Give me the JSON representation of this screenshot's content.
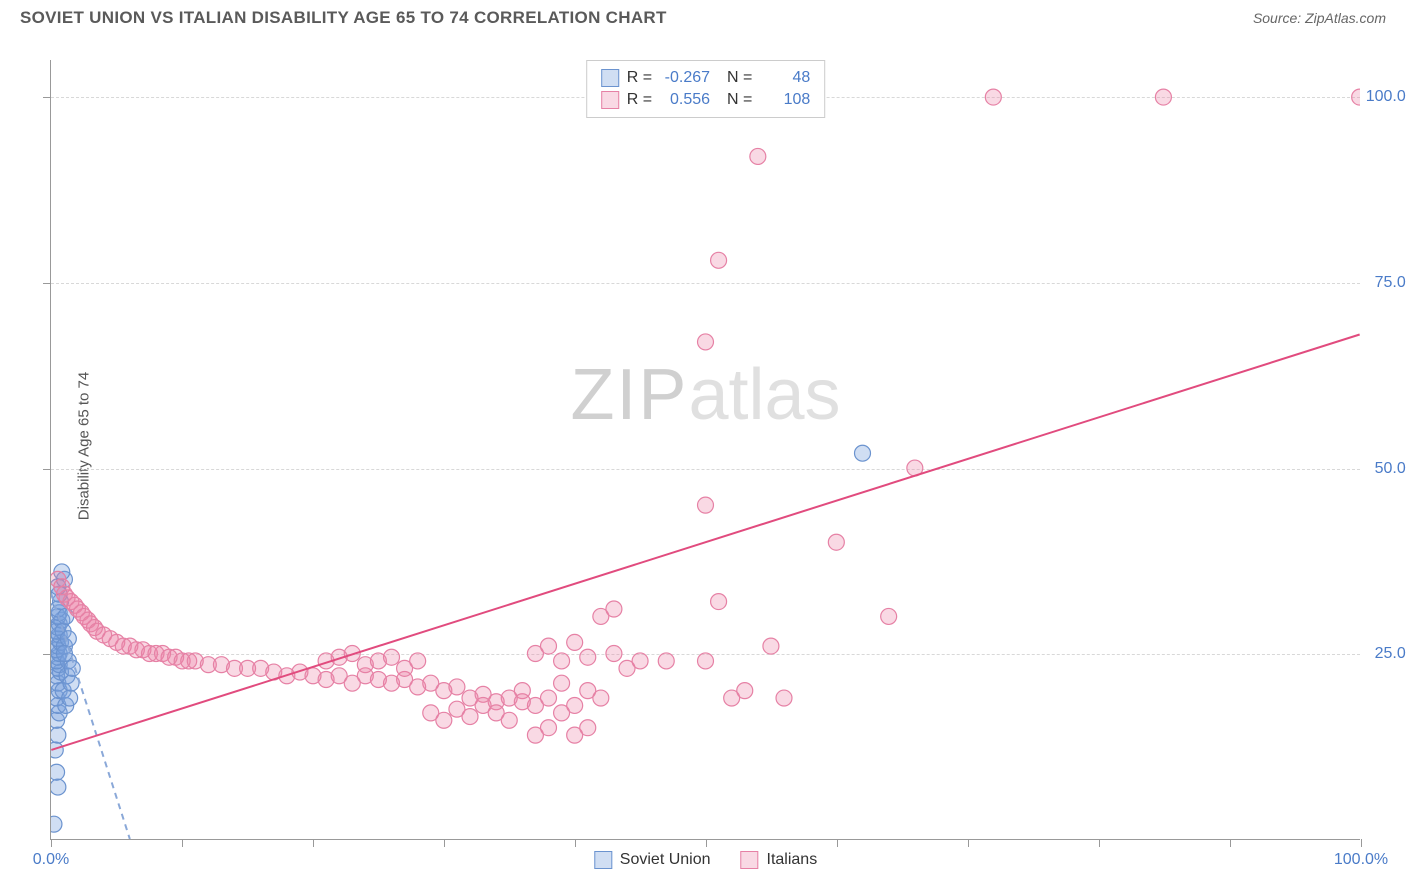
{
  "title": "SOVIET UNION VS ITALIAN DISABILITY AGE 65 TO 74 CORRELATION CHART",
  "source": "Source: ZipAtlas.com",
  "y_axis_title": "Disability Age 65 to 74",
  "watermark": {
    "zip": "ZIP",
    "atlas": "atlas"
  },
  "chart": {
    "type": "scatter",
    "xlim": [
      0,
      100
    ],
    "ylim": [
      0,
      105
    ],
    "x_ticks": [
      0,
      10,
      20,
      30,
      40,
      50,
      60,
      70,
      80,
      90,
      100
    ],
    "y_ticks": [
      25,
      50,
      75,
      100
    ],
    "x_labels": [
      {
        "v": 0,
        "t": "0.0%"
      },
      {
        "v": 100,
        "t": "100.0%"
      }
    ],
    "y_labels": [
      {
        "v": 25,
        "t": "25.0%"
      },
      {
        "v": 50,
        "t": "50.0%"
      },
      {
        "v": 75,
        "t": "75.0%"
      },
      {
        "v": 100,
        "t": "100.0%"
      }
    ],
    "grid_color": "#d8d8d8",
    "background_color": "#ffffff",
    "marker_radius": 8,
    "marker_stroke_width": 1.2,
    "line_width": 2,
    "series": [
      {
        "name": "Soviet Union",
        "fill": "rgba(120,160,220,0.35)",
        "stroke": "#6b93cf",
        "line_color": "#8aa8d8",
        "r_value": "-0.267",
        "n_value": "48",
        "dashed": true,
        "trend": {
          "x1": 0,
          "y1": 33,
          "x2": 6,
          "y2": 0
        },
        "points": [
          [
            0.2,
            2
          ],
          [
            0.5,
            7
          ],
          [
            0.4,
            9
          ],
          [
            0.3,
            12
          ],
          [
            0.5,
            14
          ],
          [
            0.4,
            16
          ],
          [
            0.6,
            17
          ],
          [
            0.5,
            18
          ],
          [
            0.4,
            19
          ],
          [
            0.6,
            20
          ],
          [
            0.5,
            21
          ],
          [
            0.4,
            22
          ],
          [
            0.7,
            22.5
          ],
          [
            0.5,
            23
          ],
          [
            0.6,
            23.5
          ],
          [
            0.4,
            24
          ],
          [
            0.5,
            24.5
          ],
          [
            0.6,
            25
          ],
          [
            0.4,
            25.5
          ],
          [
            0.5,
            26
          ],
          [
            0.7,
            26.5
          ],
          [
            0.5,
            27
          ],
          [
            0.6,
            27.5
          ],
          [
            0.4,
            28
          ],
          [
            0.5,
            28.5
          ],
          [
            0.6,
            29
          ],
          [
            0.8,
            29.5
          ],
          [
            0.5,
            30
          ],
          [
            0.6,
            30.5
          ],
          [
            0.5,
            31
          ],
          [
            0.7,
            32
          ],
          [
            0.6,
            33
          ],
          [
            0.5,
            34
          ],
          [
            1.0,
            35
          ],
          [
            0.8,
            36
          ],
          [
            0.9,
            20
          ],
          [
            1.1,
            18
          ],
          [
            1.2,
            22
          ],
          [
            1.3,
            24
          ],
          [
            1.0,
            26
          ],
          [
            1.4,
            19
          ],
          [
            1.5,
            21
          ],
          [
            0.9,
            28
          ],
          [
            1.1,
            30
          ],
          [
            1.3,
            27
          ],
          [
            1.6,
            23
          ],
          [
            1.0,
            25
          ],
          [
            62,
            52
          ]
        ]
      },
      {
        "name": "Italians",
        "fill": "rgba(235,130,165,0.30)",
        "stroke": "#e681a5",
        "line_color": "#e14b7e",
        "r_value": "0.556",
        "n_value": "108",
        "dashed": false,
        "trend": {
          "x1": 0,
          "y1": 12,
          "x2": 100,
          "y2": 68
        },
        "points": [
          [
            0.5,
            35
          ],
          [
            0.8,
            34
          ],
          [
            1,
            33
          ],
          [
            1.2,
            32.5
          ],
          [
            1.5,
            32
          ],
          [
            1.8,
            31.5
          ],
          [
            2,
            31
          ],
          [
            2.3,
            30.5
          ],
          [
            2.5,
            30
          ],
          [
            2.8,
            29.5
          ],
          [
            3,
            29
          ],
          [
            3.3,
            28.5
          ],
          [
            3.5,
            28
          ],
          [
            4,
            27.5
          ],
          [
            4.5,
            27
          ],
          [
            5,
            26.5
          ],
          [
            5.5,
            26
          ],
          [
            6,
            26
          ],
          [
            6.5,
            25.5
          ],
          [
            7,
            25.5
          ],
          [
            7.5,
            25
          ],
          [
            8,
            25
          ],
          [
            8.5,
            25
          ],
          [
            9,
            24.5
          ],
          [
            9.5,
            24.5
          ],
          [
            10,
            24
          ],
          [
            10.5,
            24
          ],
          [
            11,
            24
          ],
          [
            12,
            23.5
          ],
          [
            13,
            23.5
          ],
          [
            14,
            23
          ],
          [
            15,
            23
          ],
          [
            16,
            23
          ],
          [
            17,
            22.5
          ],
          [
            18,
            22
          ],
          [
            19,
            22.5
          ],
          [
            20,
            22
          ],
          [
            21,
            21.5
          ],
          [
            22,
            22
          ],
          [
            23,
            21
          ],
          [
            24,
            22
          ],
          [
            25,
            21.5
          ],
          [
            26,
            21
          ],
          [
            27,
            21.5
          ],
          [
            28,
            20.5
          ],
          [
            29,
            21
          ],
          [
            30,
            20
          ],
          [
            31,
            20.5
          ],
          [
            21,
            24
          ],
          [
            22,
            24.5
          ],
          [
            23,
            25
          ],
          [
            24,
            23.5
          ],
          [
            25,
            24
          ],
          [
            26,
            24.5
          ],
          [
            27,
            23
          ],
          [
            28,
            24
          ],
          [
            32,
            19
          ],
          [
            33,
            19.5
          ],
          [
            34,
            18.5
          ],
          [
            35,
            19
          ],
          [
            36,
            20
          ],
          [
            37,
            18
          ],
          [
            38,
            19
          ],
          [
            39,
            21
          ],
          [
            29,
            17
          ],
          [
            30,
            16
          ],
          [
            31,
            17.5
          ],
          [
            32,
            16.5
          ],
          [
            33,
            18
          ],
          [
            34,
            17
          ],
          [
            35,
            16
          ],
          [
            36,
            18.5
          ],
          [
            37,
            14
          ],
          [
            38,
            15
          ],
          [
            39,
            17
          ],
          [
            40,
            18
          ],
          [
            41,
            20
          ],
          [
            42,
            19
          ],
          [
            40,
            14
          ],
          [
            41,
            15
          ],
          [
            37,
            25
          ],
          [
            38,
            26
          ],
          [
            39,
            24
          ],
          [
            40,
            26.5
          ],
          [
            41,
            24.5
          ],
          [
            43,
            25
          ],
          [
            44,
            23
          ],
          [
            45,
            24
          ],
          [
            42,
            30
          ],
          [
            43,
            31
          ],
          [
            47,
            24
          ],
          [
            50,
            24
          ],
          [
            51,
            32
          ],
          [
            55,
            26
          ],
          [
            50,
            45
          ],
          [
            52,
            19
          ],
          [
            53,
            20
          ],
          [
            56,
            19
          ],
          [
            50,
            67
          ],
          [
            51,
            78
          ],
          [
            54,
            92
          ],
          [
            60,
            40
          ],
          [
            64,
            30
          ],
          [
            66,
            50
          ],
          [
            72,
            100
          ],
          [
            85,
            100
          ],
          [
            100,
            100
          ]
        ]
      }
    ]
  },
  "legend_bottom": [
    "Soviet Union",
    "Italians"
  ]
}
